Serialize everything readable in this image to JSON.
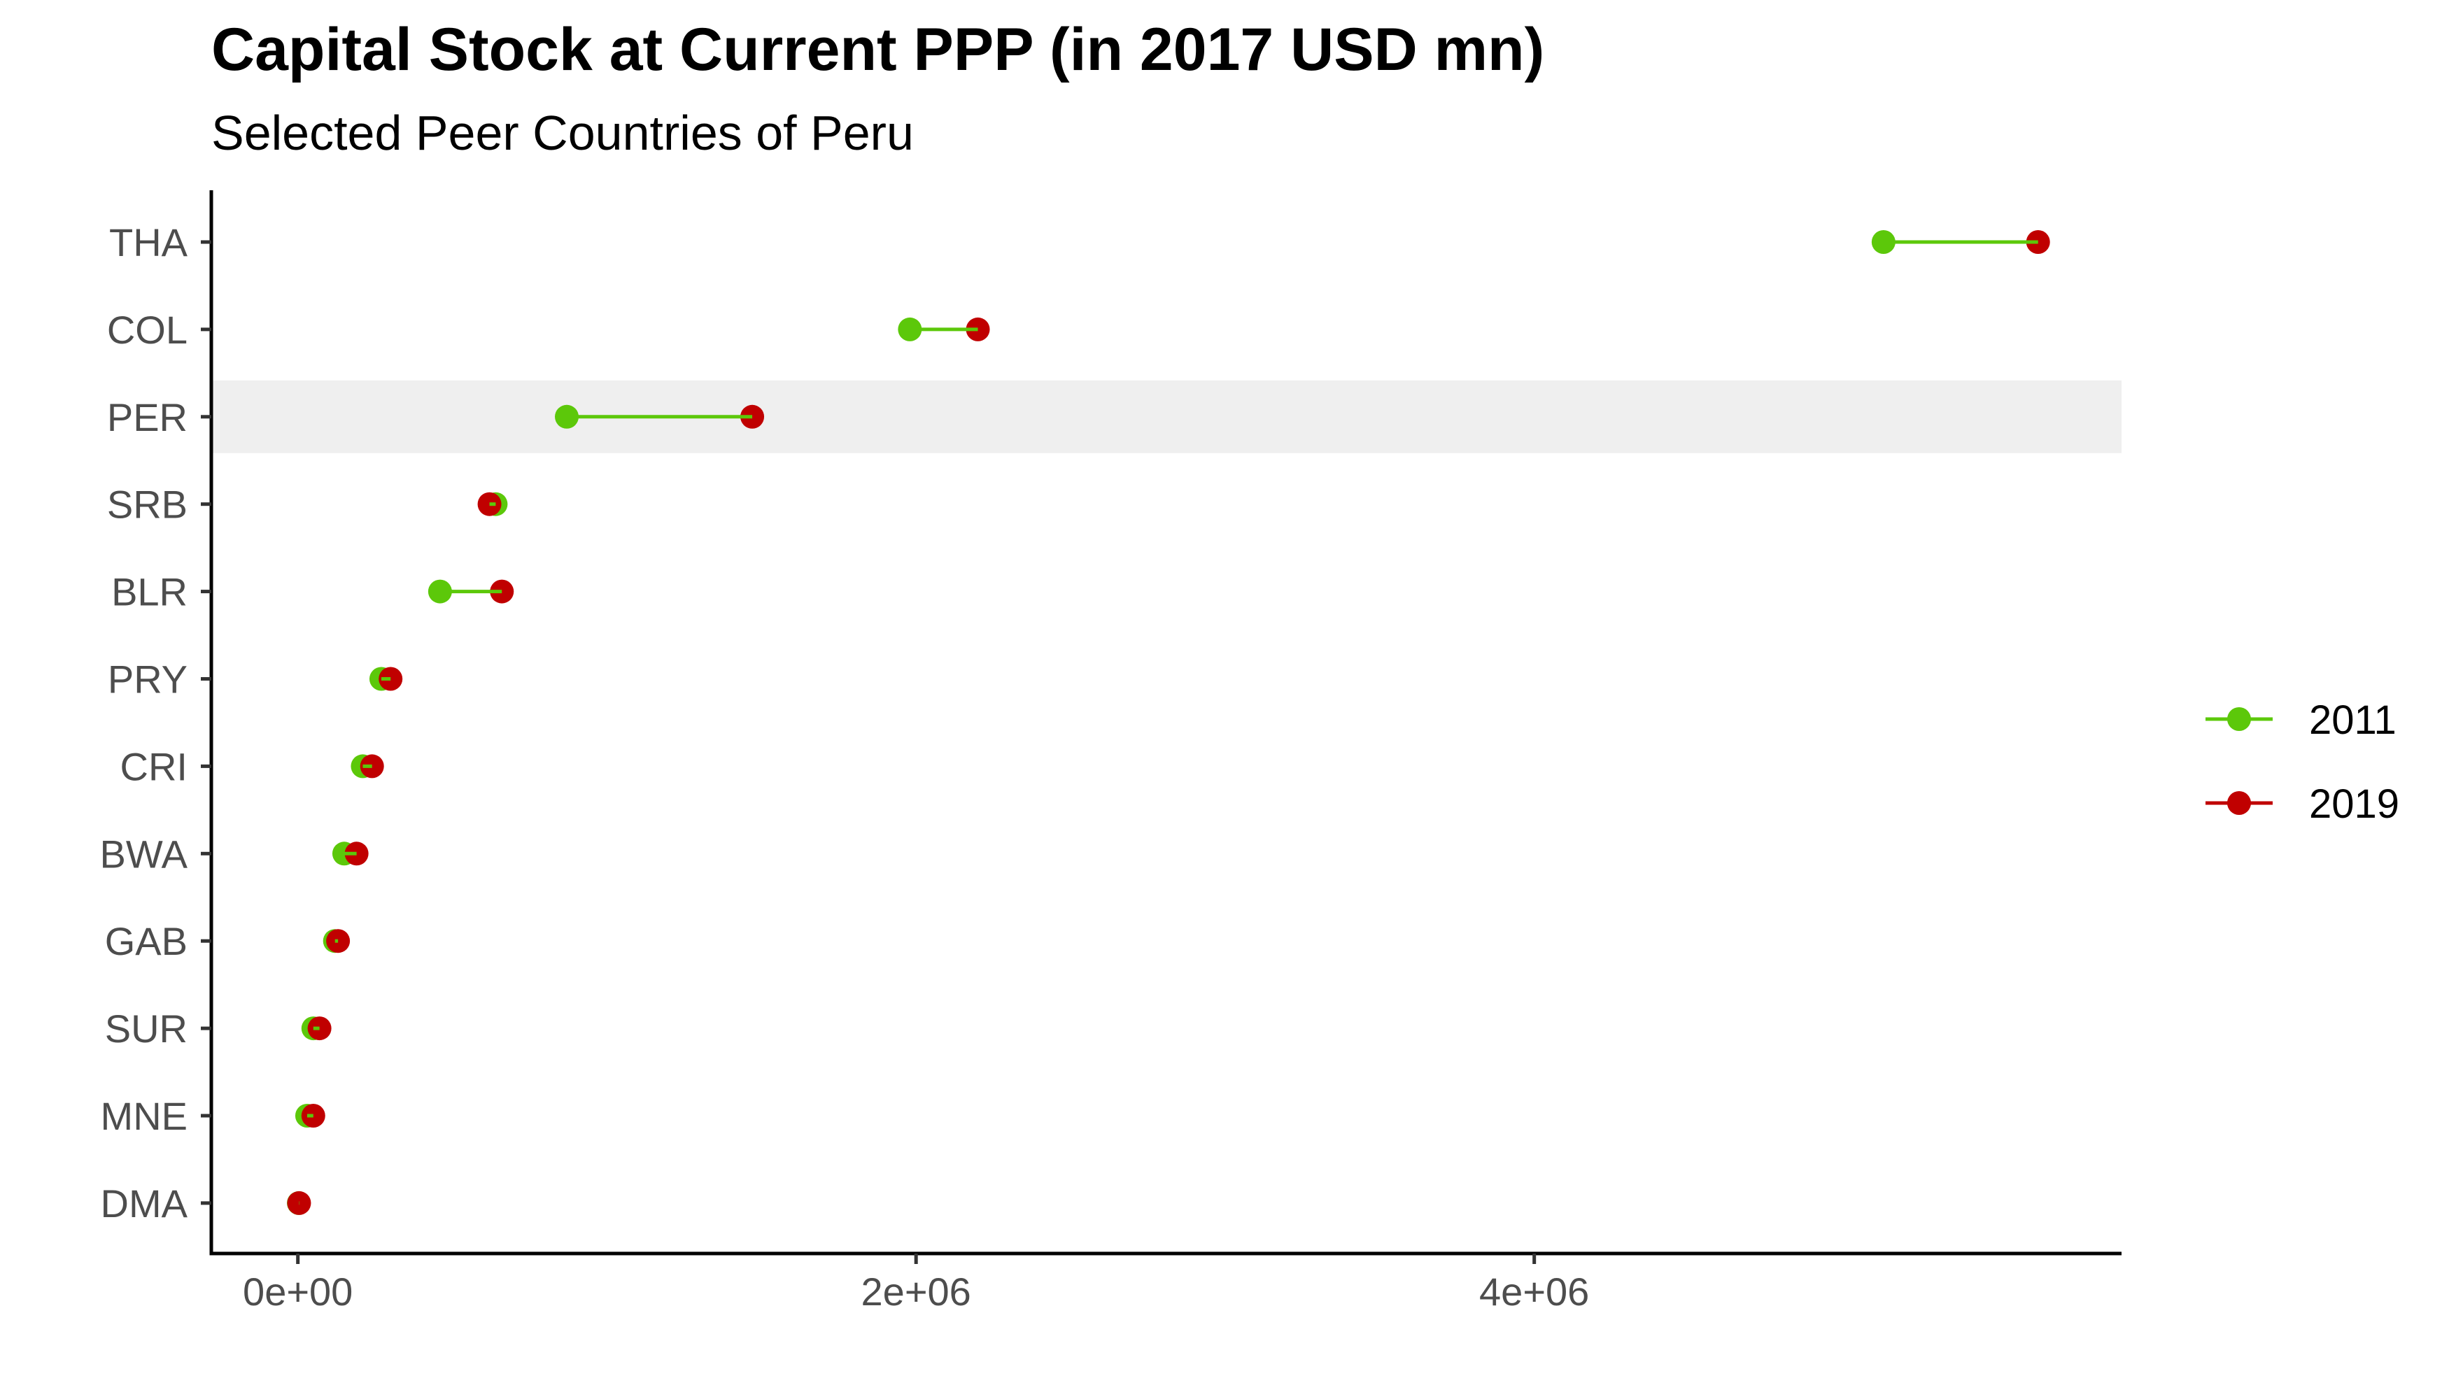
{
  "chart_data": {
    "type": "dumbbell",
    "title": "Capital Stock at Current PPP (in 2017 USD mn)",
    "subtitle": "Selected Peer Countries of Peru",
    "xlabel": "",
    "ylabel": "",
    "xlim": [
      -280000,
      5900000
    ],
    "xticks": [
      0,
      2000000,
      4000000
    ],
    "xtick_labels": [
      "0e+00",
      "2e+06",
      "4e+06"
    ],
    "categories": [
      "THA",
      "COL",
      "PER",
      "SRB",
      "BLR",
      "PRY",
      "CRI",
      "BWA",
      "GAB",
      "SUR",
      "MNE",
      "DMA"
    ],
    "highlight": "PER",
    "grid": false,
    "legend_position": "right",
    "series": [
      {
        "name": "2011",
        "color": "#5cc80a",
        "values": [
          5130000,
          1980000,
          870000,
          640000,
          460000,
          270000,
          210000,
          150000,
          120000,
          50000,
          30000,
          3000
        ]
      },
      {
        "name": "2019",
        "color": "#c00000",
        "values": [
          5630000,
          2200000,
          1470000,
          620000,
          660000,
          300000,
          240000,
          190000,
          130000,
          70000,
          50000,
          4000
        ]
      }
    ]
  }
}
